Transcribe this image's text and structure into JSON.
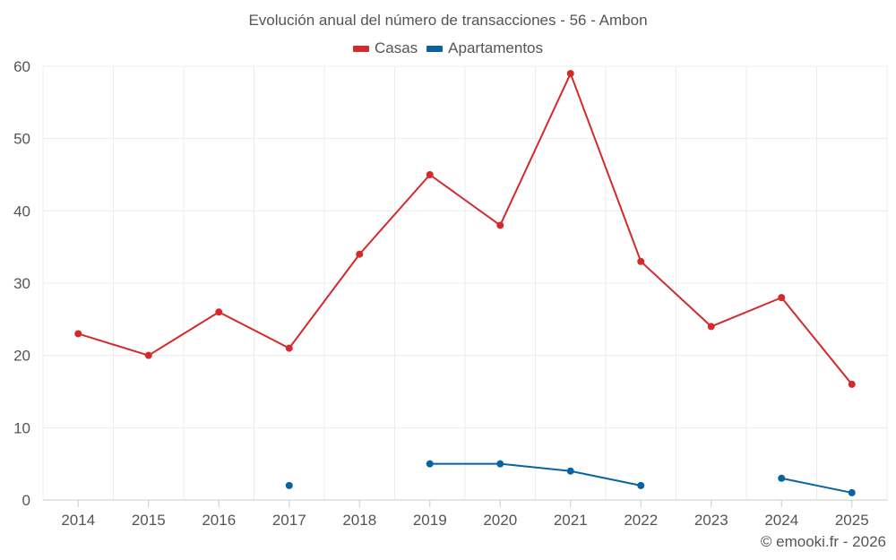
{
  "chart_data": {
    "type": "line",
    "title": "Evolución anual del número de transacciones - 56 - Ambon",
    "categories": [
      "2014",
      "2015",
      "2016",
      "2017",
      "2018",
      "2019",
      "2020",
      "2021",
      "2022",
      "2023",
      "2024",
      "2025"
    ],
    "ylim": [
      0,
      60
    ],
    "yticks": [
      "0",
      "10",
      "20",
      "30",
      "40",
      "50",
      "60"
    ],
    "grid": true,
    "legend_position": "top-center",
    "series": [
      {
        "name": "Casas",
        "color": "#d42a2a",
        "values": [
          23,
          20,
          26,
          21,
          34,
          45,
          38,
          59,
          33,
          24,
          28,
          16
        ]
      },
      {
        "name": "Apartamentos",
        "color": "#0a62a1",
        "values": [
          null,
          null,
          null,
          2,
          null,
          5,
          5,
          4,
          2,
          null,
          3,
          1
        ]
      }
    ],
    "credit": "© emooki.fr - 2026"
  }
}
